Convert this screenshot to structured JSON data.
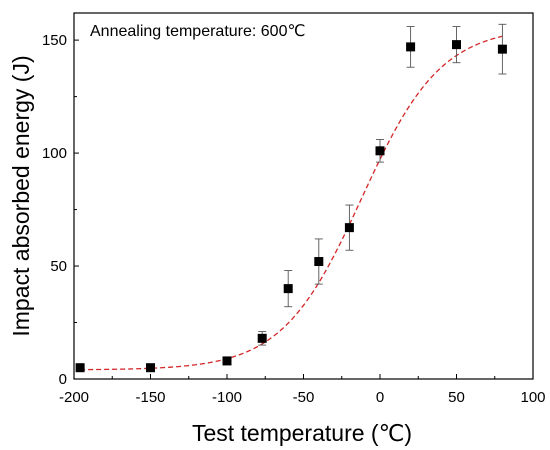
{
  "chart_data": {
    "type": "scatter",
    "annotation": "Annealing temperature: 600℃",
    "xlabel": "Test temperature (℃)",
    "ylabel": "Impact absorbed energy (J)",
    "xlim": [
      -200,
      100
    ],
    "ylim": [
      0,
      162
    ],
    "xticks": [
      -200,
      -150,
      -100,
      -50,
      0,
      50,
      100
    ],
    "yticks": [
      0,
      50,
      100,
      150
    ],
    "grid": false,
    "legend": "none",
    "colors": {
      "points": "#000000",
      "fit": "#d62728"
    },
    "series": [
      {
        "x": [
          -196,
          -150,
          -100,
          -77,
          -60,
          -40,
          -20,
          0,
          20,
          50,
          80
        ],
        "y": [
          5,
          5,
          8,
          18,
          40,
          52,
          67,
          101,
          147,
          148,
          146
        ],
        "err": [
          0,
          0,
          1,
          3,
          8,
          10,
          10,
          5,
          9,
          8,
          11
        ]
      }
    ],
    "fit": {
      "model": "sigmoid",
      "lower": 4,
      "upper": 156,
      "center": -12,
      "width": 26,
      "x_range": [
        -196,
        80
      ]
    }
  }
}
